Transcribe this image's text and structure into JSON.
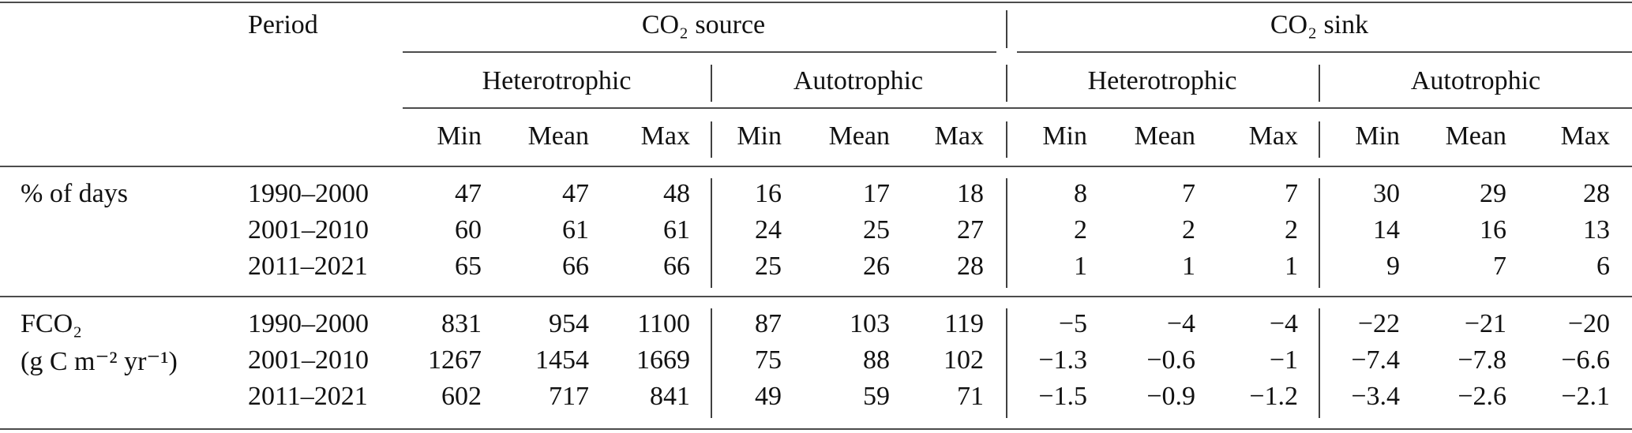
{
  "table": {
    "header": {
      "period": "Period",
      "groups": [
        {
          "label": "CO₂ source",
          "subgroups": [
            {
              "label": "Heterotrophic",
              "columns": [
                "Min",
                "Mean",
                "Max"
              ]
            },
            {
              "label": "Autotrophic",
              "columns": [
                "Min",
                "Mean",
                "Max"
              ]
            }
          ]
        },
        {
          "label": "CO₂ sink",
          "subgroups": [
            {
              "label": "Heterotrophic",
              "columns": [
                "Min",
                "Mean",
                "Max"
              ]
            },
            {
              "label": "Autotrophic",
              "columns": [
                "Min",
                "Mean",
                "Max"
              ]
            }
          ]
        }
      ]
    },
    "sections": [
      {
        "label": [
          "% of days"
        ],
        "rows": [
          {
            "period": "1990–2000",
            "values": [
              "47",
              "47",
              "48",
              "16",
              "17",
              "18",
              "8",
              "7",
              "7",
              "30",
              "29",
              "28"
            ]
          },
          {
            "period": "2001–2010",
            "values": [
              "60",
              "61",
              "61",
              "24",
              "25",
              "27",
              "2",
              "2",
              "2",
              "14",
              "16",
              "13"
            ]
          },
          {
            "period": "2011–2021",
            "values": [
              "65",
              "66",
              "66",
              "25",
              "26",
              "28",
              "1",
              "1",
              "1",
              "9",
              "7",
              "6"
            ]
          }
        ]
      },
      {
        "label": [
          "FCO₂",
          "(g C m⁻² yr⁻¹)"
        ],
        "rows": [
          {
            "period": "1990–2000",
            "values": [
              "831",
              "954",
              "1100",
              "87",
              "103",
              "119",
              "−5",
              "−4",
              "−4",
              "−22",
              "−21",
              "−20"
            ]
          },
          {
            "period": "2001–2010",
            "values": [
              "1267",
              "1454",
              "1669",
              "75",
              "88",
              "102",
              "−1.3",
              "−0.6",
              "−1",
              "−7.4",
              "−7.8",
              "−6.6"
            ]
          },
          {
            "period": "2011–2021",
            "values": [
              "602",
              "717",
              "841",
              "49",
              "59",
              "71",
              "−1.5",
              "−0.9",
              "−1.2",
              "−3.4",
              "−2.6",
              "−2.1"
            ]
          }
        ]
      }
    ]
  }
}
